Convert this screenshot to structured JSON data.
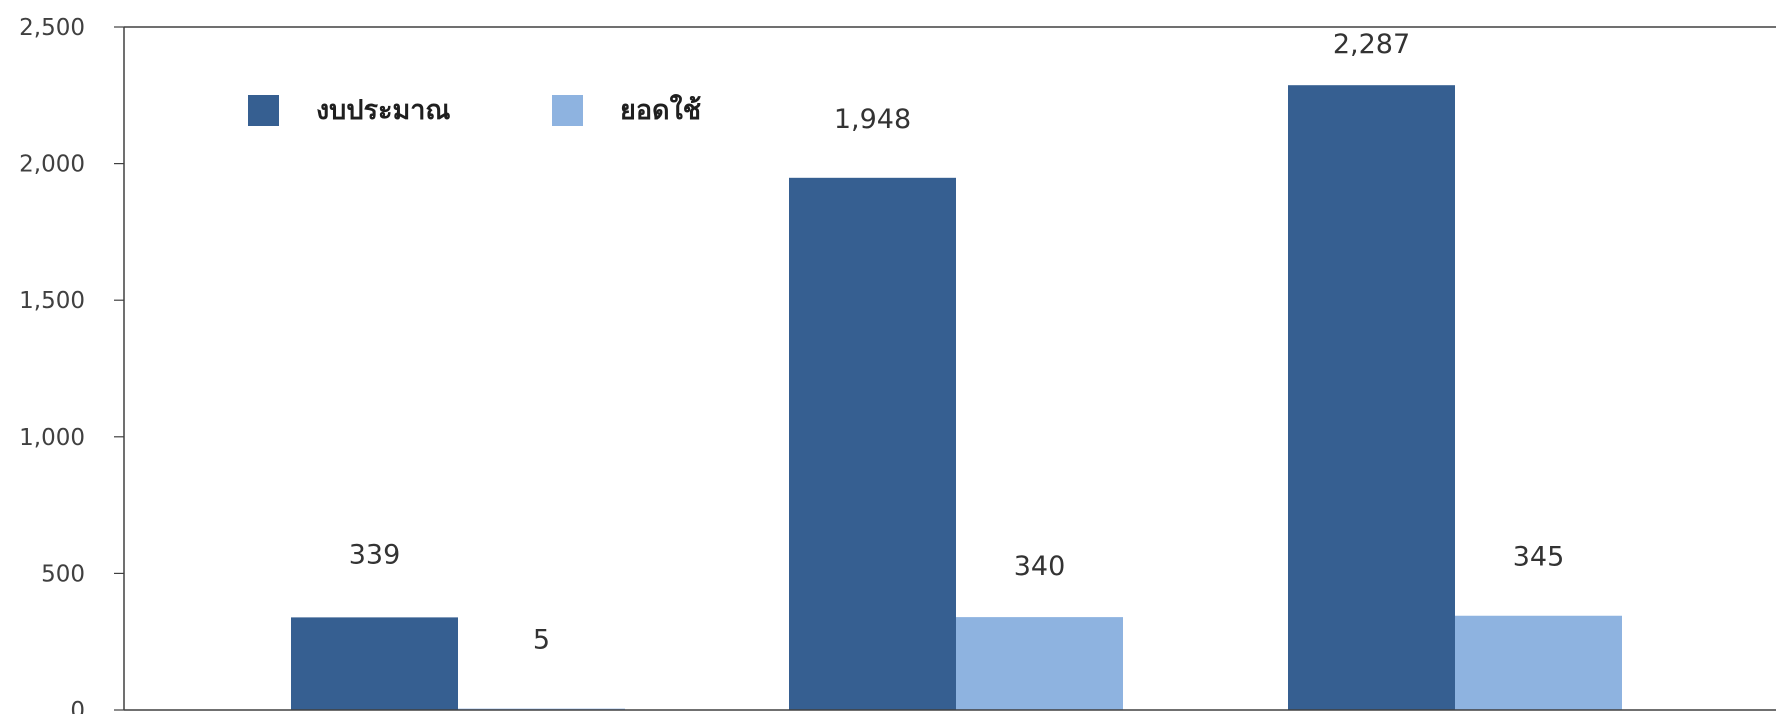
{
  "chart_data": {
    "type": "bar",
    "categories": [
      "",
      "",
      ""
    ],
    "series": [
      {
        "name": "งบประมาณ",
        "values": [
          339,
          1948,
          2287
        ],
        "color": "#365f91"
      },
      {
        "name": "ยอดใช้",
        "values": [
          5,
          340,
          345
        ],
        "color": "#8eb3e0"
      }
    ],
    "value_labels": [
      [
        "339",
        "1,948",
        "2,287"
      ],
      [
        "5",
        "340",
        "345"
      ]
    ],
    "y_ticks": [
      {
        "value": 0,
        "label": "0"
      },
      {
        "value": 500,
        "label": "500"
      },
      {
        "value": 1000,
        "label": "1,000"
      },
      {
        "value": 1500,
        "label": "1,500"
      },
      {
        "value": 2000,
        "label": "2,000"
      },
      {
        "value": 2500,
        "label": "2,500"
      }
    ],
    "ylim": [
      0,
      2500
    ],
    "title": "",
    "xlabel": "",
    "ylabel": "",
    "grid": false,
    "legend": "top-left inside plot"
  }
}
